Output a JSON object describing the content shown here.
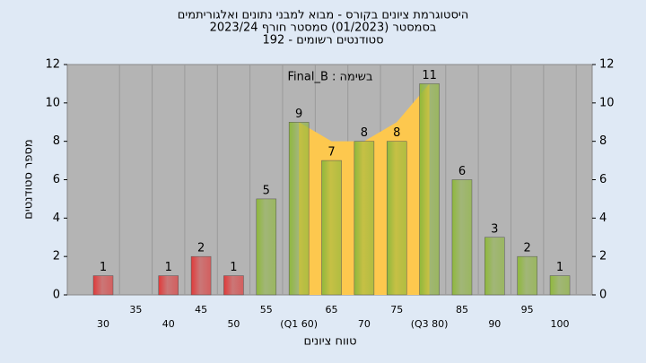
{
  "chart_data": {
    "type": "bar",
    "title": [
      "היסטוגרמת ציונים בקורס - מבוא למבני נתונים ואלגוריתמים",
      "בסמסטר  (01/2023)  סמסטר חורף 2023/24",
      "סטודנטים רשומים - 192"
    ],
    "annotation": "Final_B : בשימה",
    "xlabel": "טווח ציונים",
    "ylabel": "מספר סטודנטים",
    "categories": [
      "30",
      "35",
      "40",
      "45",
      "50",
      "55",
      "(Q1 60)",
      "65",
      "70",
      "75",
      "(Q3 80)",
      "85",
      "90",
      "95",
      "100"
    ],
    "values": [
      1,
      0,
      1,
      2,
      1,
      5,
      9,
      7,
      8,
      8,
      11,
      6,
      3,
      2,
      1
    ],
    "colors": [
      "#e03a3a",
      "#e03a3a",
      "#e03a3a",
      "#e03a3a",
      "#e03a3a",
      "#8fb83c",
      "#8fb83c",
      "#8fb83c",
      "#8fb83c",
      "#8fb83c",
      "#8fb83c",
      "#8fb83c",
      "#8fb83c",
      "#8fb83c",
      "#8fb83c"
    ],
    "area_values": [
      null,
      null,
      null,
      null,
      null,
      null,
      9,
      8,
      8,
      9,
      11,
      null,
      null,
      null,
      null
    ],
    "area_color": "#fdc84e",
    "ylim": [
      0,
      12
    ],
    "yticks": [
      0,
      2,
      4,
      6,
      8,
      10,
      12
    ],
    "y2ticks": [
      0,
      2,
      4,
      6,
      8,
      10,
      12
    ],
    "grid": true
  }
}
